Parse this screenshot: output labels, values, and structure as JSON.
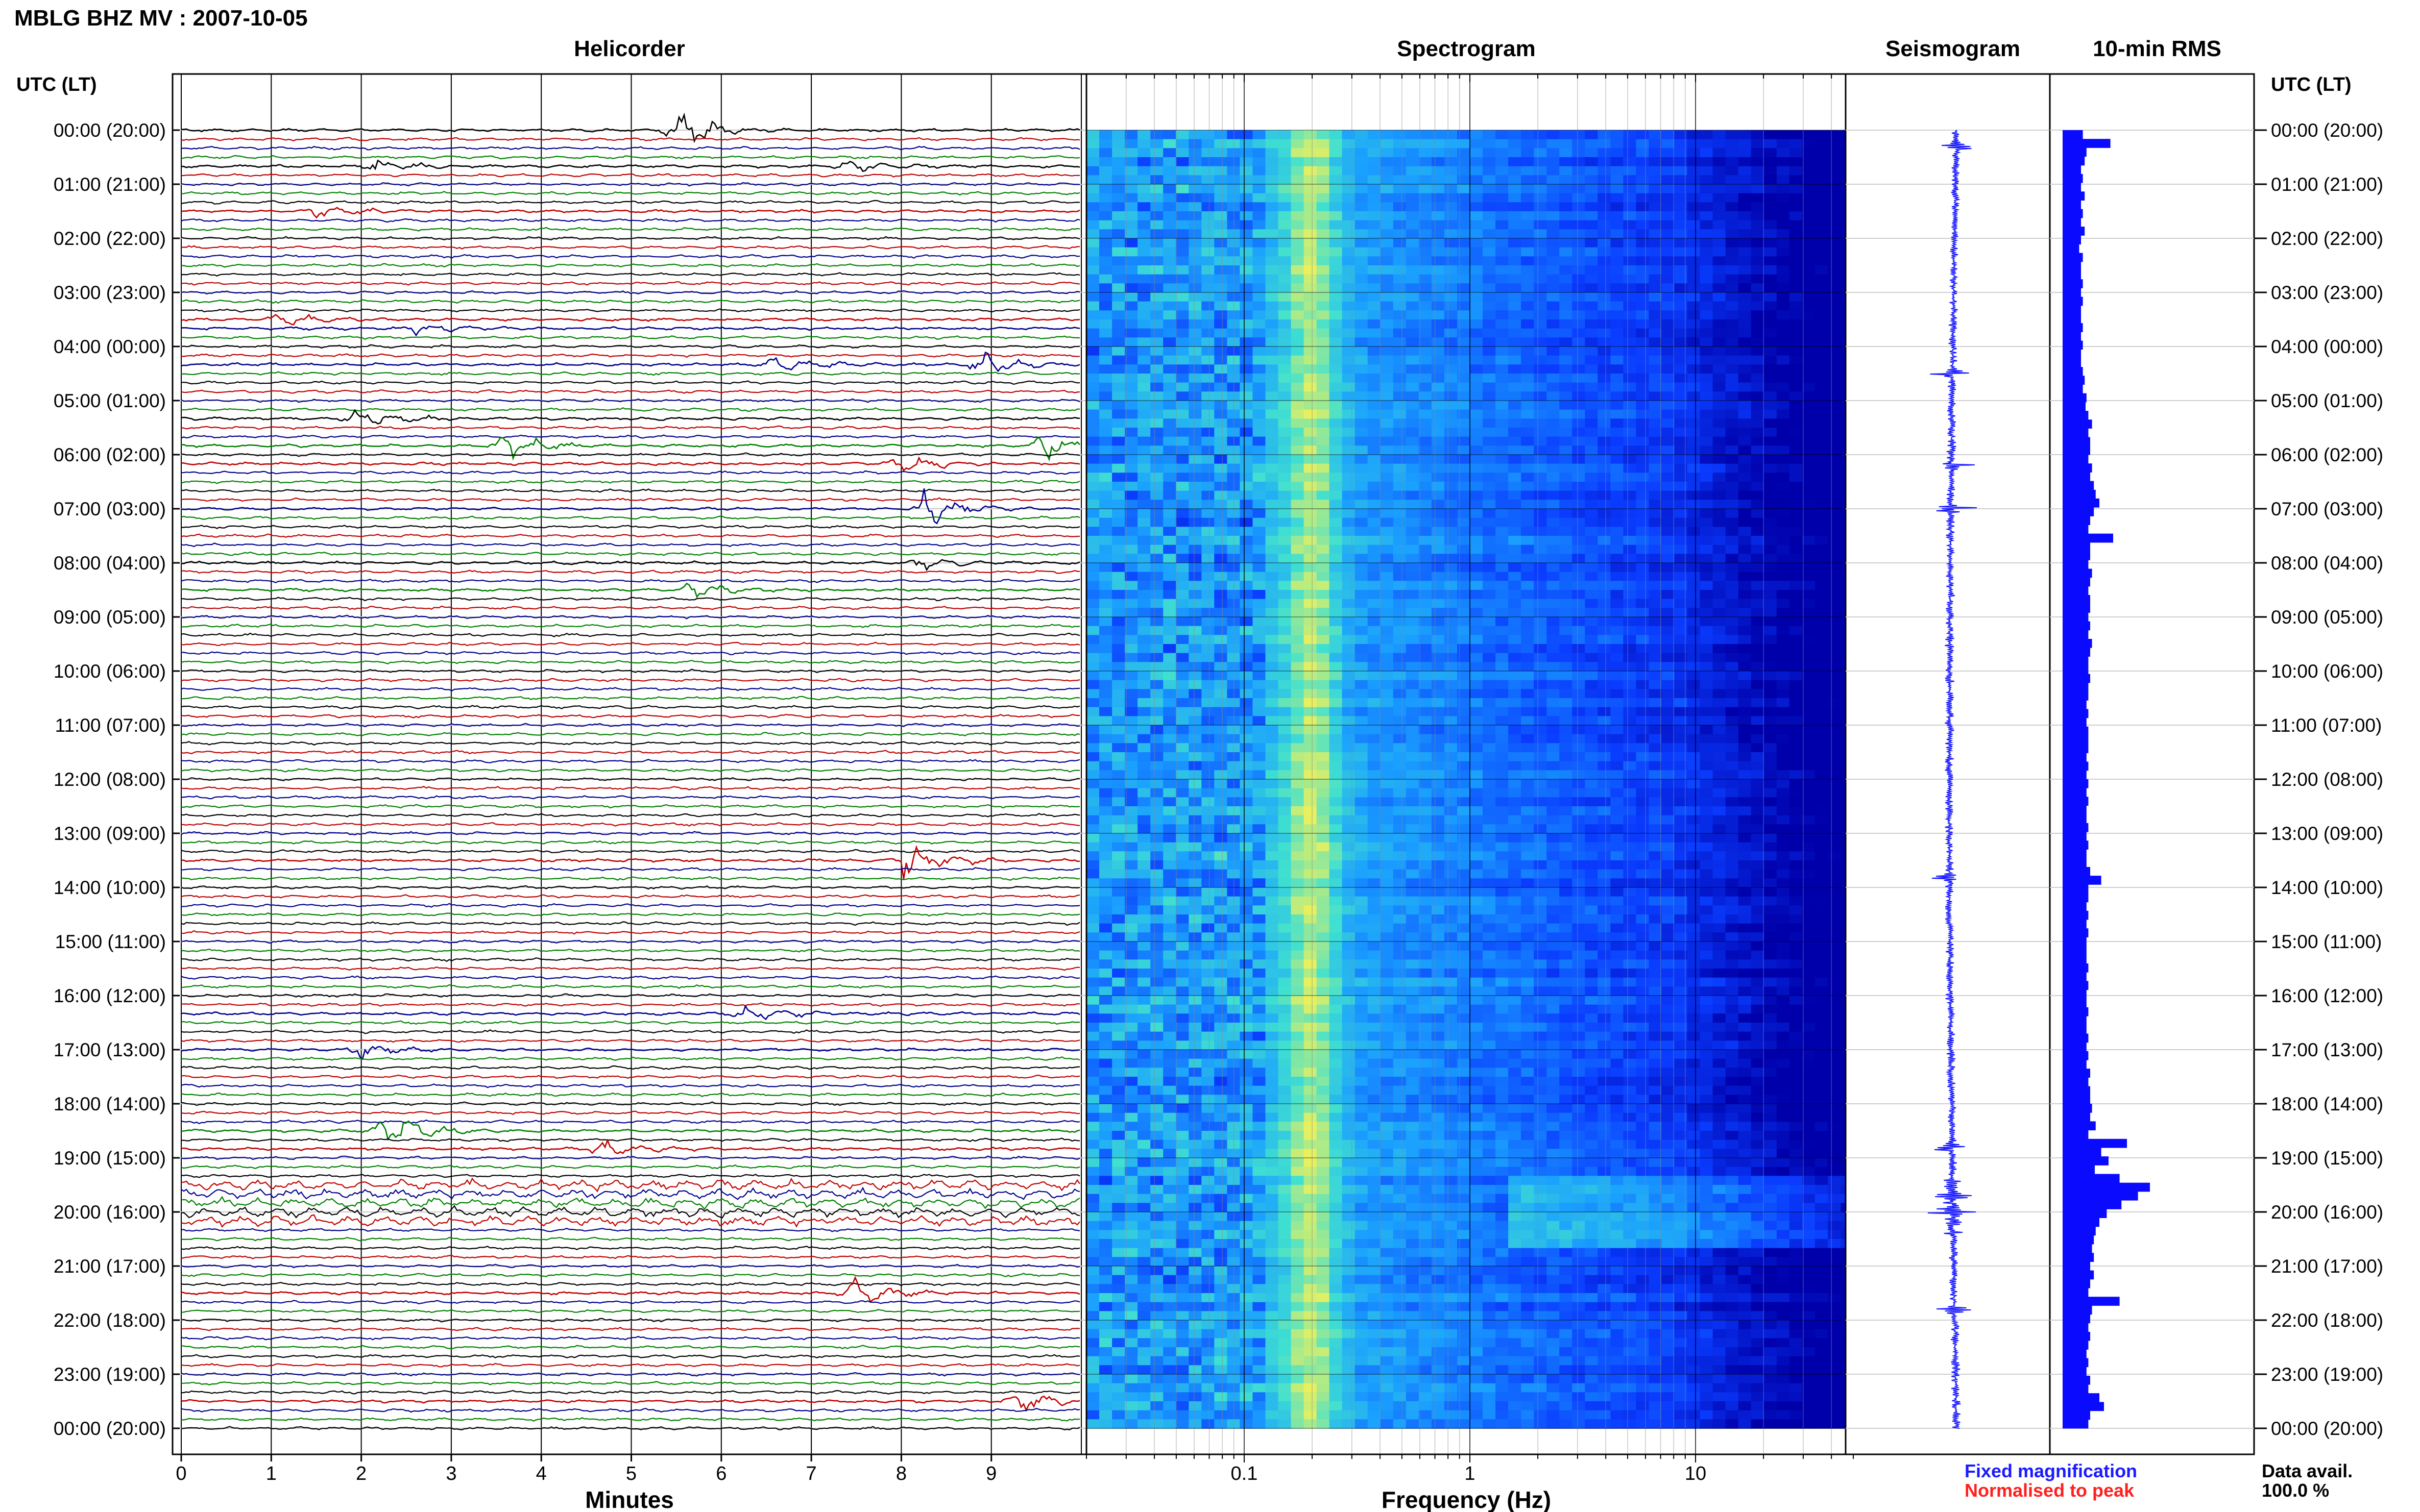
{
  "page": {
    "title": "MBLG BHZ MV : 2007-10-05",
    "left_axis_header": "UTC (LT)",
    "right_axis_header": "UTC (LT)"
  },
  "panels": {
    "helicorder": "Helicorder",
    "spectrogram": "Spectrogram",
    "seismogram": "Seismogram",
    "rms": "10-min RMS"
  },
  "time_labels": [
    "00:00 (20:00)",
    "01:00 (21:00)",
    "02:00 (22:00)",
    "03:00 (23:00)",
    "04:00 (00:00)",
    "05:00 (01:00)",
    "06:00 (02:00)",
    "07:00 (03:00)",
    "08:00 (04:00)",
    "09:00 (05:00)",
    "10:00 (06:00)",
    "11:00 (07:00)",
    "12:00 (08:00)",
    "13:00 (09:00)",
    "14:00 (10:00)",
    "15:00 (11:00)",
    "16:00 (12:00)",
    "17:00 (13:00)",
    "18:00 (14:00)",
    "19:00 (15:00)",
    "20:00 (16:00)",
    "21:00 (17:00)",
    "22:00 (18:00)",
    "23:00 (19:00)",
    "00:00 (20:00)"
  ],
  "legend": {
    "fixed": "Fixed magnification",
    "normalised": "Normalised to peak",
    "fixed_color": "#1a1aff",
    "normalised_color": "#ff2020",
    "data_avail_label": "Data avail.",
    "data_avail_value": "100.0 %"
  },
  "chart_data": [
    {
      "type": "line",
      "title": "Helicorder",
      "xlabel": "Minutes",
      "xlim": [
        0,
        10
      ],
      "x_ticks": [
        0,
        1,
        2,
        3,
        4,
        5,
        6,
        7,
        8,
        9
      ],
      "rows_per_hour": 6,
      "trace_colors": [
        "#000000",
        "#c00000",
        "#00008b",
        "#008000"
      ],
      "events": [
        {
          "hour": 0.0,
          "minute": 5.5,
          "amp": 1.0,
          "color_index": 1
        },
        {
          "hour": 0.7,
          "minute": 2.2,
          "amp": 0.35,
          "color_index": 1
        },
        {
          "hour": 0.7,
          "minute": 7.4,
          "amp": 0.3,
          "color_index": 2
        },
        {
          "hour": 1.5,
          "minute": 1.5,
          "amp": 0.3,
          "color_index": 3
        },
        {
          "hour": 3.5,
          "minute": 1.1,
          "amp": 0.45,
          "color_index": 1
        },
        {
          "hour": 3.7,
          "minute": 2.6,
          "amp": 0.35,
          "color_index": 2
        },
        {
          "hour": 4.3,
          "minute": 6.6,
          "amp": 0.45,
          "color_index": 2
        },
        {
          "hour": 4.3,
          "minute": 8.9,
          "amp": 0.5,
          "color_index": 2
        },
        {
          "hour": 5.3,
          "minute": 2.0,
          "amp": 0.55,
          "color_index": 0
        },
        {
          "hour": 5.8,
          "minute": 3.6,
          "amp": 0.7,
          "color_index": 0
        },
        {
          "hour": 5.8,
          "minute": 9.6,
          "amp": 0.6,
          "color_index": 3
        },
        {
          "hour": 6.2,
          "minute": 8.0,
          "amp": 0.45,
          "color_index": 1
        },
        {
          "hour": 7.0,
          "minute": 8.3,
          "amp": 1.0,
          "color_index": 1
        },
        {
          "hour": 8.0,
          "minute": 8.2,
          "amp": 0.35,
          "color_index": 1
        },
        {
          "hour": 8.5,
          "minute": 5.7,
          "amp": 0.45,
          "color_index": 3
        },
        {
          "hour": 13.5,
          "minute": 8.1,
          "amp": 0.85,
          "color_index": 3
        },
        {
          "hour": 16.3,
          "minute": 6.3,
          "amp": 0.4,
          "color_index": 2
        },
        {
          "hour": 17.0,
          "minute": 2.0,
          "amp": 0.35,
          "color_index": 1
        },
        {
          "hour": 18.5,
          "minute": 2.3,
          "amp": 1.0,
          "color_index": 1
        },
        {
          "hour": 18.8,
          "minute": 4.7,
          "amp": 0.45,
          "color_index": 2
        },
        {
          "hour": 21.5,
          "minute": 7.5,
          "amp": 0.75,
          "color_index": 2
        },
        {
          "hour": 23.5,
          "minute": 9.3,
          "amp": 0.5,
          "color_index": 1
        }
      ],
      "high_noise_hours": [
        19.4,
        20.3
      ]
    },
    {
      "type": "heatmap",
      "title": "Spectrogram",
      "xlabel": "Frequency (Hz)",
      "x_scale": "log",
      "xlim": [
        0.02,
        50
      ],
      "x_ticks": [
        0.1,
        1,
        10
      ],
      "x_tick_labels": [
        "0.1",
        "1",
        "10"
      ],
      "colormap": [
        "#0000aa",
        "#0a3cff",
        "#1aa0ff",
        "#40e0d0",
        "#e8f060"
      ],
      "microseism_peak_hz": 0.2,
      "high_energy_hours": [
        19.2,
        20.6
      ]
    },
    {
      "type": "line",
      "title": "Seismogram",
      "events_hours": [
        0.3,
        4.5,
        6.2,
        7.0,
        13.8,
        18.8,
        19.7,
        20.0,
        21.8
      ],
      "color": "#1a1aff"
    },
    {
      "type": "bar",
      "title": "10-min RMS",
      "color": "#0a0aff",
      "x_relative": true,
      "values": [
        0.22,
        0.52,
        0.26,
        0.24,
        0.2,
        0.22,
        0.2,
        0.24,
        0.2,
        0.22,
        0.2,
        0.24,
        0.2,
        0.18,
        0.22,
        0.2,
        0.2,
        0.22,
        0.2,
        0.22,
        0.2,
        0.2,
        0.22,
        0.2,
        0.22,
        0.2,
        0.2,
        0.22,
        0.24,
        0.22,
        0.26,
        0.25,
        0.28,
        0.32,
        0.28,
        0.3,
        0.3,
        0.28,
        0.32,
        0.3,
        0.34,
        0.36,
        0.4,
        0.34,
        0.3,
        0.28,
        0.55,
        0.3,
        0.3,
        0.28,
        0.32,
        0.3,
        0.28,
        0.3,
        0.3,
        0.28,
        0.3,
        0.28,
        0.32,
        0.3,
        0.28,
        0.28,
        0.3,
        0.28,
        0.28,
        0.26,
        0.28,
        0.26,
        0.28,
        0.28,
        0.28,
        0.26,
        0.28,
        0.26,
        0.28,
        0.26,
        0.28,
        0.26,
        0.26,
        0.28,
        0.26,
        0.28,
        0.26,
        0.26,
        0.3,
        0.42,
        0.28,
        0.28,
        0.26,
        0.28,
        0.26,
        0.28,
        0.26,
        0.26,
        0.26,
        0.28,
        0.26,
        0.28,
        0.26,
        0.26,
        0.28,
        0.26,
        0.26,
        0.28,
        0.26,
        0.28,
        0.26,
        0.3,
        0.28,
        0.3,
        0.3,
        0.32,
        0.3,
        0.36,
        0.28,
        0.7,
        0.42,
        0.5,
        0.35,
        0.62,
        0.95,
        0.82,
        0.64,
        0.48,
        0.4,
        0.36,
        0.34,
        0.32,
        0.34,
        0.3,
        0.34,
        0.3,
        0.28,
        0.62,
        0.32,
        0.3,
        0.28,
        0.3,
        0.28,
        0.26,
        0.28,
        0.26,
        0.3,
        0.28,
        0.4,
        0.45,
        0.3,
        0.28
      ]
    }
  ]
}
